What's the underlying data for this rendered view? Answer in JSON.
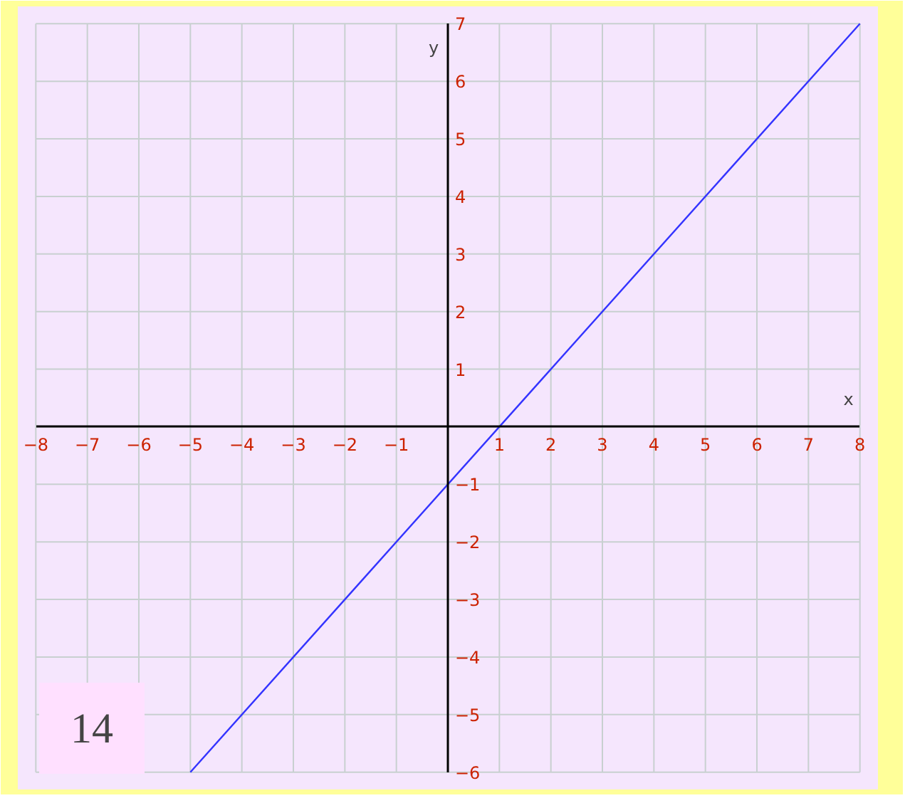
{
  "chart_data": {
    "type": "line",
    "xlabel": "x",
    "ylabel": "y",
    "x": [
      -5,
      8
    ],
    "series": [
      {
        "color": "#3333ff",
        "values": [
          -6,
          7
        ]
      }
    ],
    "xlim": [
      -8,
      8
    ],
    "ylim": [
      -6,
      7
    ],
    "xticks": [
      -8,
      -7,
      -6,
      -5,
      -4,
      -3,
      -2,
      -1,
      1,
      2,
      3,
      4,
      5,
      6,
      7,
      8
    ],
    "yticks": [
      -6,
      -5,
      -4,
      -3,
      -2,
      -1,
      1,
      2,
      3,
      4,
      5,
      6,
      7
    ],
    "grid": true,
    "marker": "none",
    "line_style": "solid",
    "annotations": [
      "14"
    ]
  }
}
